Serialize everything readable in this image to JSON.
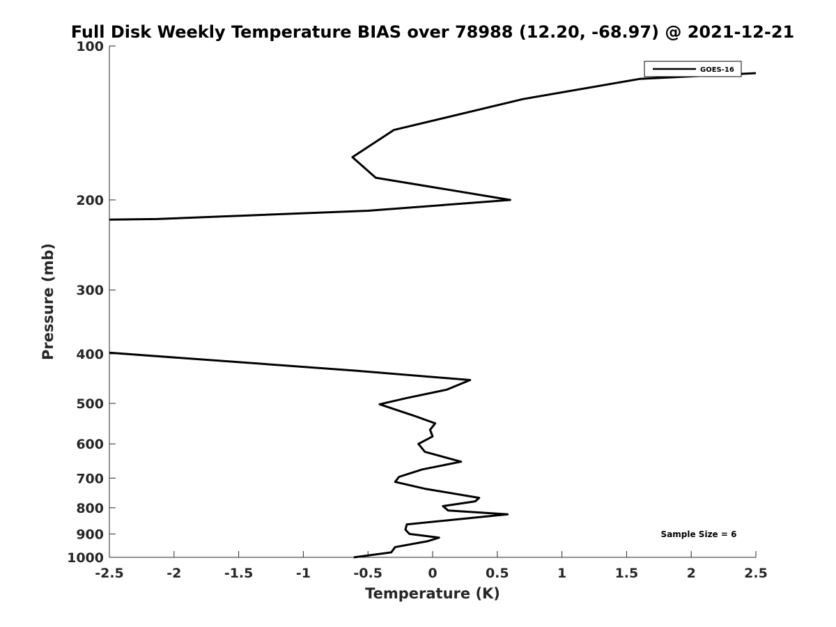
{
  "chart_data": {
    "type": "line",
    "title": "Full Disk Weekly Temperature BIAS over 78988 (12.20, -68.97) @ 2021-12-21",
    "xlabel": "Temperature (K)",
    "ylabel": "Pressure (mb)",
    "xlim": [
      -2.5,
      2.5
    ],
    "ylim": [
      100,
      1000
    ],
    "y_scale": "log",
    "y_reversed": true,
    "x_ticks": [
      -2.5,
      -2,
      -1.5,
      -1,
      -0.5,
      0,
      0.5,
      1,
      1.5,
      2,
      2.5
    ],
    "x_tick_labels": [
      "-2.5",
      "-2",
      "-1.5",
      "-1",
      "-0.5",
      "0",
      "0.5",
      "1",
      "1.5",
      "2",
      "2.5"
    ],
    "y_ticks": [
      100,
      200,
      300,
      400,
      500,
      600,
      700,
      800,
      900,
      1000
    ],
    "y_tick_labels": [
      "100",
      "200",
      "300",
      "400",
      "500",
      "600",
      "700",
      "800",
      "900",
      "1000"
    ],
    "grid": false,
    "legend_position": "top-right",
    "annotation": "Sample Size = 6",
    "series": [
      {
        "name": "GOES-16",
        "color": "#000000",
        "segments": [
          [
            {
              "x": 2.5,
              "y": 113
            },
            {
              "x": 1.6,
              "y": 116
            },
            {
              "x": 0.7,
              "y": 127
            },
            {
              "x": -0.3,
              "y": 146
            },
            {
              "x": -0.62,
              "y": 165
            },
            {
              "x": -0.44,
              "y": 181
            },
            {
              "x": 0.6,
              "y": 200
            },
            {
              "x": -0.5,
              "y": 210
            },
            {
              "x": -2.13,
              "y": 218
            },
            {
              "x": -2.5,
              "y": 218.6
            }
          ],
          [
            {
              "x": -2.5,
              "y": 398
            },
            {
              "x": -0.62,
              "y": 431
            },
            {
              "x": 0.29,
              "y": 450
            },
            {
              "x": 0.11,
              "y": 470
            },
            {
              "x": -0.2,
              "y": 488
            },
            {
              "x": -0.41,
              "y": 502
            },
            {
              "x": -0.15,
              "y": 528
            },
            {
              "x": 0.02,
              "y": 547
            },
            {
              "x": -0.02,
              "y": 563
            },
            {
              "x": 0.0,
              "y": 580
            },
            {
              "x": -0.11,
              "y": 600
            },
            {
              "x": -0.06,
              "y": 622
            },
            {
              "x": 0.22,
              "y": 650
            },
            {
              "x": -0.08,
              "y": 673
            },
            {
              "x": -0.26,
              "y": 696
            },
            {
              "x": -0.29,
              "y": 712
            },
            {
              "x": -0.05,
              "y": 735
            },
            {
              "x": 0.36,
              "y": 765
            },
            {
              "x": 0.33,
              "y": 777
            },
            {
              "x": 0.08,
              "y": 794
            },
            {
              "x": 0.12,
              "y": 810
            },
            {
              "x": 0.58,
              "y": 824
            },
            {
              "x": 0.23,
              "y": 841
            },
            {
              "x": -0.2,
              "y": 862
            },
            {
              "x": -0.21,
              "y": 883
            },
            {
              "x": -0.18,
              "y": 900
            },
            {
              "x": 0.05,
              "y": 915
            },
            {
              "x": -0.04,
              "y": 930
            },
            {
              "x": -0.29,
              "y": 955
            },
            {
              "x": -0.32,
              "y": 978
            },
            {
              "x": -0.61,
              "y": 1000
            }
          ]
        ]
      }
    ]
  }
}
